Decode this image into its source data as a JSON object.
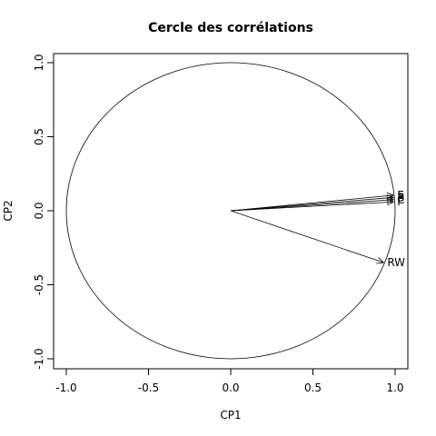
{
  "chart_data": {
    "type": "scatter",
    "title": "Cercle des corrélations",
    "xlabel": "CP1",
    "ylabel": "CP2",
    "xlim": [
      -1.0,
      1.0
    ],
    "ylim": [
      -1.0,
      1.0
    ],
    "x_ticks": [
      -1.0,
      -0.5,
      0.0,
      0.5,
      1.0
    ],
    "x_tick_labels": [
      "-1.0",
      "-0.5",
      "0.0",
      "0.5",
      "1.0"
    ],
    "y_ticks": [
      -1.0,
      -0.5,
      0.0,
      0.5,
      1.0
    ],
    "y_tick_labels": [
      "-1.0",
      "-0.5",
      "0.0",
      "0.5",
      "1.0"
    ],
    "grid": false,
    "unit_circle": true,
    "vectors": [
      {
        "label": "E",
        "x": 0.99,
        "y": 0.105,
        "color": "#000000"
      },
      {
        "label": "B",
        "x": 0.99,
        "y": 0.09,
        "color": "#000000"
      },
      {
        "label": "C",
        "x": 0.99,
        "y": 0.075,
        "color": "#000000"
      },
      {
        "label": "F",
        "x": 0.99,
        "y": 0.06,
        "color": "#000000"
      },
      {
        "label": "RW",
        "x": 0.93,
        "y": -0.35,
        "color": "#000000"
      }
    ]
  }
}
